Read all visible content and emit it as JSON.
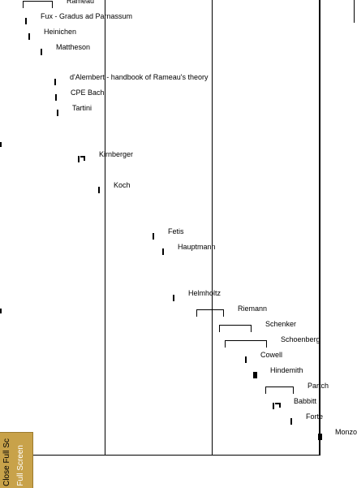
{
  "side_panel": {
    "full_screen_label": "Full Screen",
    "close_full_screen_label": "Close Full Sc"
  },
  "timeline": {
    "entries": [
      {
        "label": "Rameau",
        "kind": "range"
      },
      {
        "label": "Fux - Gradus ad Parnassum",
        "kind": "tick"
      },
      {
        "label": "Heinichen",
        "kind": "tick"
      },
      {
        "label": "Mattheson",
        "kind": "tick"
      },
      {
        "label": "d'Alembert - handbook of Rameau's theory",
        "kind": "tick"
      },
      {
        "label": "CPE Bach",
        "kind": "tick"
      },
      {
        "label": "Tartini",
        "kind": "tick"
      },
      {
        "label": "Kirnberger",
        "kind": "double"
      },
      {
        "label": "Koch",
        "kind": "tick"
      },
      {
        "label": "Fetis",
        "kind": "tick"
      },
      {
        "label": "Hauptmann",
        "kind": "tick"
      },
      {
        "label": "Helmholtz",
        "kind": "tick"
      },
      {
        "label": "Riemann",
        "kind": "range"
      },
      {
        "label": "Schenker",
        "kind": "range"
      },
      {
        "label": "Schoenberg",
        "kind": "range"
      },
      {
        "label": "Cowell",
        "kind": "tick"
      },
      {
        "label": "Hindemith",
        "kind": "thick"
      },
      {
        "label": "Partch",
        "kind": "range"
      },
      {
        "label": "Babbitt",
        "kind": "double"
      },
      {
        "label": "Forte",
        "kind": "tick"
      },
      {
        "label": "Monzo",
        "kind": "thick"
      }
    ]
  }
}
